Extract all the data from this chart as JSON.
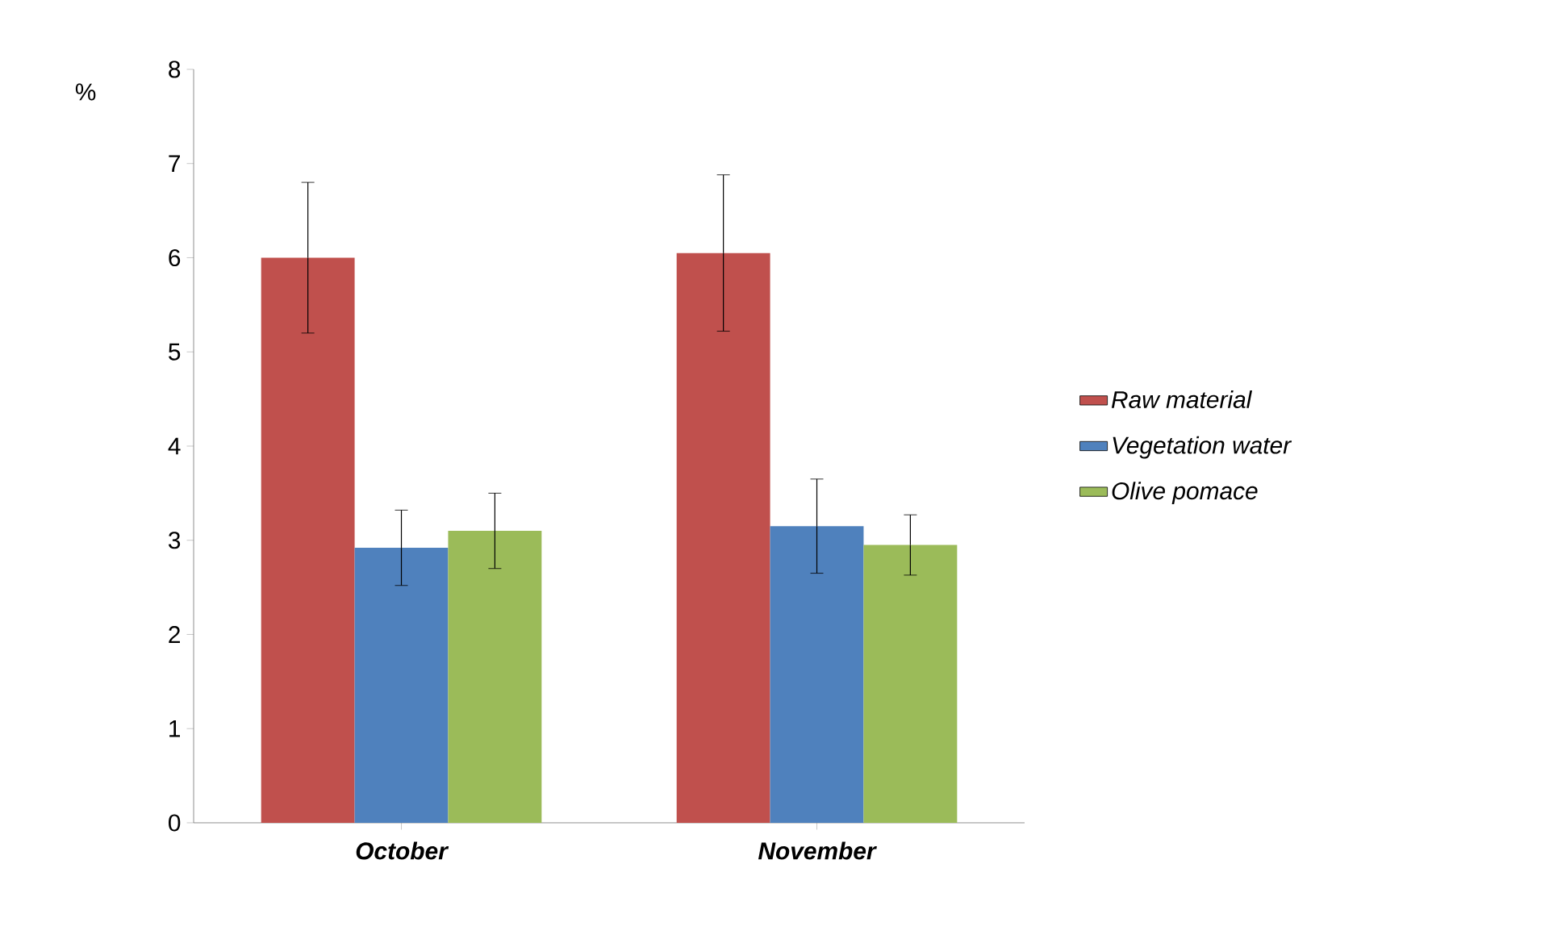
{
  "chart_data": {
    "type": "bar",
    "ylabel": "%",
    "categories": [
      "October",
      "November"
    ],
    "series": [
      {
        "name": "Raw material",
        "color": "#c0504d",
        "values": [
          6.0,
          6.05
        ],
        "errors": [
          0.8,
          0.83
        ]
      },
      {
        "name": "Vegetation water",
        "color": "#4f81bd",
        "values": [
          2.92,
          3.15
        ],
        "errors": [
          0.4,
          0.5
        ]
      },
      {
        "name": "Olive pomace",
        "color": "#9bbb59",
        "values": [
          3.1,
          2.95
        ],
        "errors": [
          0.4,
          0.32
        ]
      }
    ],
    "ylim": [
      0,
      8
    ],
    "yticks": [
      0,
      1,
      2,
      3,
      4,
      5,
      6,
      7,
      8
    ],
    "grid": false,
    "legend": "right"
  }
}
